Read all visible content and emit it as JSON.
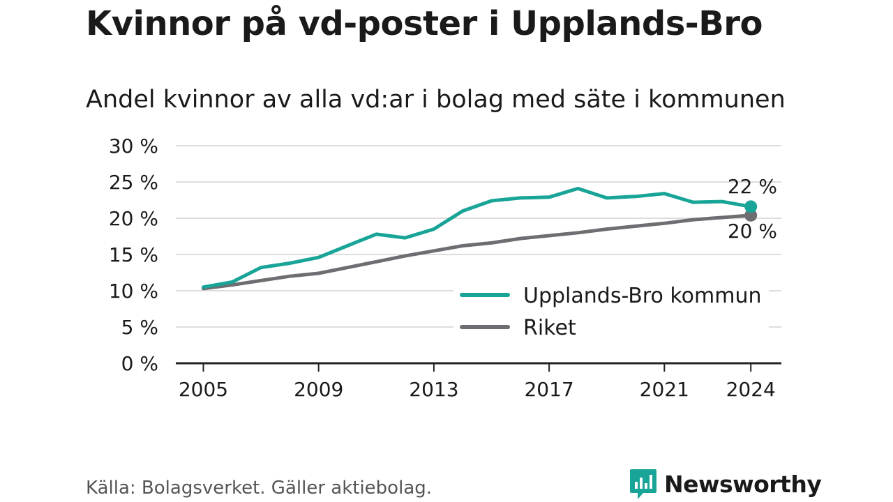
{
  "header": {
    "title": "Kvinnor på vd-poster i Upplands-Bro",
    "subtitle": "Andel kvinnor av alla vd:ar i bolag med säte i kommunen"
  },
  "footer": {
    "source": "Källa: Bolagsverket. Gäller aktiebolag.",
    "brand": "Newsworthy",
    "brand_icon": "bar-chart-speech-bubble-icon"
  },
  "colors": {
    "upplands_bro": "#18a497",
    "riket": "#6d6d72",
    "grid": "#dddddd",
    "axis": "#222222"
  },
  "chart_data": {
    "type": "line",
    "title": "Kvinnor på vd-poster i Upplands-Bro",
    "subtitle": "Andel kvinnor av alla vd:ar i bolag med säte i kommunen",
    "xlabel": "",
    "ylabel": "",
    "x": [
      2005,
      2006,
      2007,
      2008,
      2009,
      2010,
      2011,
      2012,
      2013,
      2014,
      2015,
      2016,
      2017,
      2018,
      2019,
      2020,
      2021,
      2022,
      2023,
      2024
    ],
    "x_ticks": [
      2005,
      2009,
      2013,
      2017,
      2021,
      2024
    ],
    "y_ticks": [
      {
        "value": 0,
        "label": "0 %"
      },
      {
        "value": 5,
        "label": "5 %"
      },
      {
        "value": 10,
        "label": "10 %"
      },
      {
        "value": 15,
        "label": "15 %"
      },
      {
        "value": 20,
        "label": "20 %"
      },
      {
        "value": 25,
        "label": "25 %"
      },
      {
        "value": 30,
        "label": "30 %"
      }
    ],
    "ylim": [
      0,
      30
    ],
    "grid": true,
    "legend_position": "bottom-right",
    "series": [
      {
        "name": "Upplands-Bro kommun",
        "color": "#18a497",
        "values": [
          10.5,
          11.2,
          13.2,
          13.8,
          14.6,
          16.2,
          17.8,
          17.3,
          18.5,
          21.0,
          22.4,
          22.8,
          22.9,
          24.1,
          22.8,
          23.0,
          23.4,
          22.2,
          22.3,
          21.6
        ],
        "end_label": "22 %"
      },
      {
        "name": "Riket",
        "color": "#6d6d72",
        "values": [
          10.3,
          10.8,
          11.4,
          12.0,
          12.4,
          13.2,
          14.0,
          14.8,
          15.5,
          16.2,
          16.6,
          17.2,
          17.6,
          18.0,
          18.5,
          18.9,
          19.3,
          19.8,
          20.1,
          20.4
        ],
        "end_label": "20 %"
      }
    ]
  }
}
